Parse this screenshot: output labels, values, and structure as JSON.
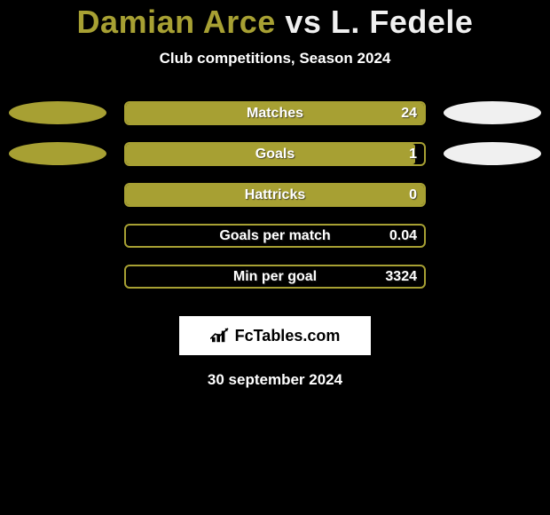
{
  "title": {
    "player1": "Damian Arce",
    "vs": "vs",
    "player2": "L. Fedele",
    "player1_color": "#a7a033",
    "player2_color": "#f0f0f0"
  },
  "subtitle": "Club competitions, Season 2024",
  "background_color": "#000000",
  "rows": [
    {
      "label": "Matches",
      "left_value": "",
      "right_value": "24",
      "left_ellipse": true,
      "right_ellipse": true,
      "fill_side": "left",
      "fill_pct": 100,
      "fill_color": "#a7a033",
      "border_color": "#a7a033"
    },
    {
      "label": "Goals",
      "left_value": "",
      "right_value": "1",
      "left_ellipse": true,
      "right_ellipse": true,
      "fill_side": "left",
      "fill_pct": 97,
      "fill_color": "#a7a033",
      "border_color": "#a7a033"
    },
    {
      "label": "Hattricks",
      "left_value": "",
      "right_value": "0",
      "left_ellipse": false,
      "right_ellipse": false,
      "fill_side": "left",
      "fill_pct": 100,
      "fill_color": "#a7a033",
      "border_color": "#a7a033"
    },
    {
      "label": "Goals per match",
      "left_value": "",
      "right_value": "0.04",
      "left_ellipse": false,
      "right_ellipse": false,
      "fill_side": "left",
      "fill_pct": 0,
      "fill_color": "#a7a033",
      "border_color": "#a7a033"
    },
    {
      "label": "Min per goal",
      "left_value": "",
      "right_value": "3324",
      "left_ellipse": false,
      "right_ellipse": false,
      "fill_side": "left",
      "fill_pct": 0,
      "fill_color": "#a7a033",
      "border_color": "#a7a033"
    }
  ],
  "ellipse_colors": {
    "left": "#a7a033",
    "right": "#f0f0f0"
  },
  "brand": {
    "text": "FcTables.com"
  },
  "date": "30 september 2024"
}
